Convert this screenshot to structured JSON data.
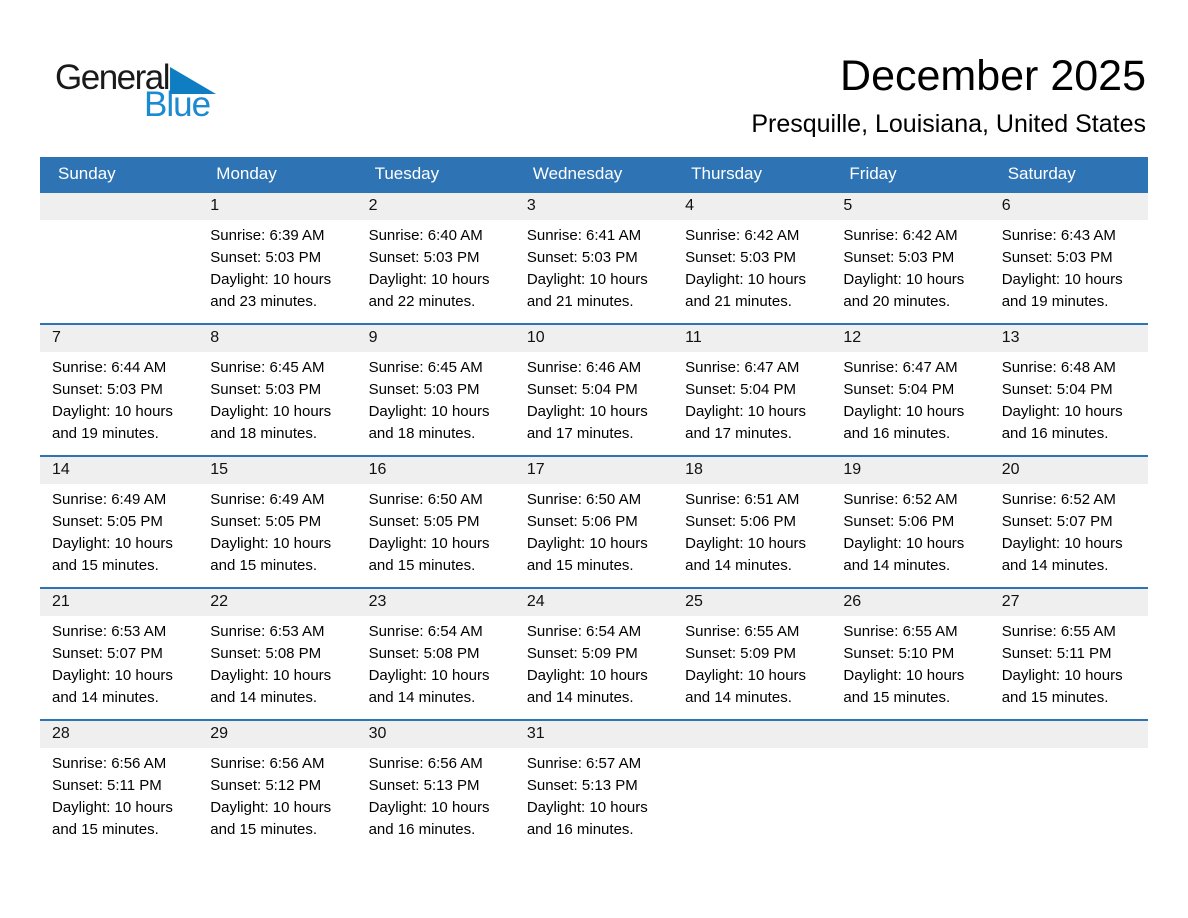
{
  "logo": {
    "general": "General",
    "blue": "Blue"
  },
  "header": {
    "title": "December 2025",
    "subtitle": "Presquille, Louisiana, United States"
  },
  "colors": {
    "header_blue": "#2e74b5",
    "band_gray": "#efefef",
    "logo_blue": "#1b8ad1"
  },
  "calendar": {
    "weekdays": [
      "Sunday",
      "Monday",
      "Tuesday",
      "Wednesday",
      "Thursday",
      "Friday",
      "Saturday"
    ],
    "weeks": [
      [
        {
          "day": ""
        },
        {
          "day": "1",
          "sunrise": "Sunrise: 6:39 AM",
          "sunset": "Sunset: 5:03 PM",
          "daylight": [
            "Daylight: 10 hours",
            "and 23 minutes."
          ]
        },
        {
          "day": "2",
          "sunrise": "Sunrise: 6:40 AM",
          "sunset": "Sunset: 5:03 PM",
          "daylight": [
            "Daylight: 10 hours",
            "and 22 minutes."
          ]
        },
        {
          "day": "3",
          "sunrise": "Sunrise: 6:41 AM",
          "sunset": "Sunset: 5:03 PM",
          "daylight": [
            "Daylight: 10 hours",
            "and 21 minutes."
          ]
        },
        {
          "day": "4",
          "sunrise": "Sunrise: 6:42 AM",
          "sunset": "Sunset: 5:03 PM",
          "daylight": [
            "Daylight: 10 hours",
            "and 21 minutes."
          ]
        },
        {
          "day": "5",
          "sunrise": "Sunrise: 6:42 AM",
          "sunset": "Sunset: 5:03 PM",
          "daylight": [
            "Daylight: 10 hours",
            "and 20 minutes."
          ]
        },
        {
          "day": "6",
          "sunrise": "Sunrise: 6:43 AM",
          "sunset": "Sunset: 5:03 PM",
          "daylight": [
            "Daylight: 10 hours",
            "and 19 minutes."
          ]
        }
      ],
      [
        {
          "day": "7",
          "sunrise": "Sunrise: 6:44 AM",
          "sunset": "Sunset: 5:03 PM",
          "daylight": [
            "Daylight: 10 hours",
            "and 19 minutes."
          ]
        },
        {
          "day": "8",
          "sunrise": "Sunrise: 6:45 AM",
          "sunset": "Sunset: 5:03 PM",
          "daylight": [
            "Daylight: 10 hours",
            "and 18 minutes."
          ]
        },
        {
          "day": "9",
          "sunrise": "Sunrise: 6:45 AM",
          "sunset": "Sunset: 5:03 PM",
          "daylight": [
            "Daylight: 10 hours",
            "and 18 minutes."
          ]
        },
        {
          "day": "10",
          "sunrise": "Sunrise: 6:46 AM",
          "sunset": "Sunset: 5:04 PM",
          "daylight": [
            "Daylight: 10 hours",
            "and 17 minutes."
          ]
        },
        {
          "day": "11",
          "sunrise": "Sunrise: 6:47 AM",
          "sunset": "Sunset: 5:04 PM",
          "daylight": [
            "Daylight: 10 hours",
            "and 17 minutes."
          ]
        },
        {
          "day": "12",
          "sunrise": "Sunrise: 6:47 AM",
          "sunset": "Sunset: 5:04 PM",
          "daylight": [
            "Daylight: 10 hours",
            "and 16 minutes."
          ]
        },
        {
          "day": "13",
          "sunrise": "Sunrise: 6:48 AM",
          "sunset": "Sunset: 5:04 PM",
          "daylight": [
            "Daylight: 10 hours",
            "and 16 minutes."
          ]
        }
      ],
      [
        {
          "day": "14",
          "sunrise": "Sunrise: 6:49 AM",
          "sunset": "Sunset: 5:05 PM",
          "daylight": [
            "Daylight: 10 hours",
            "and 15 minutes."
          ]
        },
        {
          "day": "15",
          "sunrise": "Sunrise: 6:49 AM",
          "sunset": "Sunset: 5:05 PM",
          "daylight": [
            "Daylight: 10 hours",
            "and 15 minutes."
          ]
        },
        {
          "day": "16",
          "sunrise": "Sunrise: 6:50 AM",
          "sunset": "Sunset: 5:05 PM",
          "daylight": [
            "Daylight: 10 hours",
            "and 15 minutes."
          ]
        },
        {
          "day": "17",
          "sunrise": "Sunrise: 6:50 AM",
          "sunset": "Sunset: 5:06 PM",
          "daylight": [
            "Daylight: 10 hours",
            "and 15 minutes."
          ]
        },
        {
          "day": "18",
          "sunrise": "Sunrise: 6:51 AM",
          "sunset": "Sunset: 5:06 PM",
          "daylight": [
            "Daylight: 10 hours",
            "and 14 minutes."
          ]
        },
        {
          "day": "19",
          "sunrise": "Sunrise: 6:52 AM",
          "sunset": "Sunset: 5:06 PM",
          "daylight": [
            "Daylight: 10 hours",
            "and 14 minutes."
          ]
        },
        {
          "day": "20",
          "sunrise": "Sunrise: 6:52 AM",
          "sunset": "Sunset: 5:07 PM",
          "daylight": [
            "Daylight: 10 hours",
            "and 14 minutes."
          ]
        }
      ],
      [
        {
          "day": "21",
          "sunrise": "Sunrise: 6:53 AM",
          "sunset": "Sunset: 5:07 PM",
          "daylight": [
            "Daylight: 10 hours",
            "and 14 minutes."
          ]
        },
        {
          "day": "22",
          "sunrise": "Sunrise: 6:53 AM",
          "sunset": "Sunset: 5:08 PM",
          "daylight": [
            "Daylight: 10 hours",
            "and 14 minutes."
          ]
        },
        {
          "day": "23",
          "sunrise": "Sunrise: 6:54 AM",
          "sunset": "Sunset: 5:08 PM",
          "daylight": [
            "Daylight: 10 hours",
            "and 14 minutes."
          ]
        },
        {
          "day": "24",
          "sunrise": "Sunrise: 6:54 AM",
          "sunset": "Sunset: 5:09 PM",
          "daylight": [
            "Daylight: 10 hours",
            "and 14 minutes."
          ]
        },
        {
          "day": "25",
          "sunrise": "Sunrise: 6:55 AM",
          "sunset": "Sunset: 5:09 PM",
          "daylight": [
            "Daylight: 10 hours",
            "and 14 minutes."
          ]
        },
        {
          "day": "26",
          "sunrise": "Sunrise: 6:55 AM",
          "sunset": "Sunset: 5:10 PM",
          "daylight": [
            "Daylight: 10 hours",
            "and 15 minutes."
          ]
        },
        {
          "day": "27",
          "sunrise": "Sunrise: 6:55 AM",
          "sunset": "Sunset: 5:11 PM",
          "daylight": [
            "Daylight: 10 hours",
            "and 15 minutes."
          ]
        }
      ],
      [
        {
          "day": "28",
          "sunrise": "Sunrise: 6:56 AM",
          "sunset": "Sunset: 5:11 PM",
          "daylight": [
            "Daylight: 10 hours",
            "and 15 minutes."
          ]
        },
        {
          "day": "29",
          "sunrise": "Sunrise: 6:56 AM",
          "sunset": "Sunset: 5:12 PM",
          "daylight": [
            "Daylight: 10 hours",
            "and 15 minutes."
          ]
        },
        {
          "day": "30",
          "sunrise": "Sunrise: 6:56 AM",
          "sunset": "Sunset: 5:13 PM",
          "daylight": [
            "Daylight: 10 hours",
            "and 16 minutes."
          ]
        },
        {
          "day": "31",
          "sunrise": "Sunrise: 6:57 AM",
          "sunset": "Sunset: 5:13 PM",
          "daylight": [
            "Daylight: 10 hours",
            "and 16 minutes."
          ]
        },
        {
          "day": ""
        },
        {
          "day": ""
        },
        {
          "day": ""
        }
      ]
    ]
  }
}
